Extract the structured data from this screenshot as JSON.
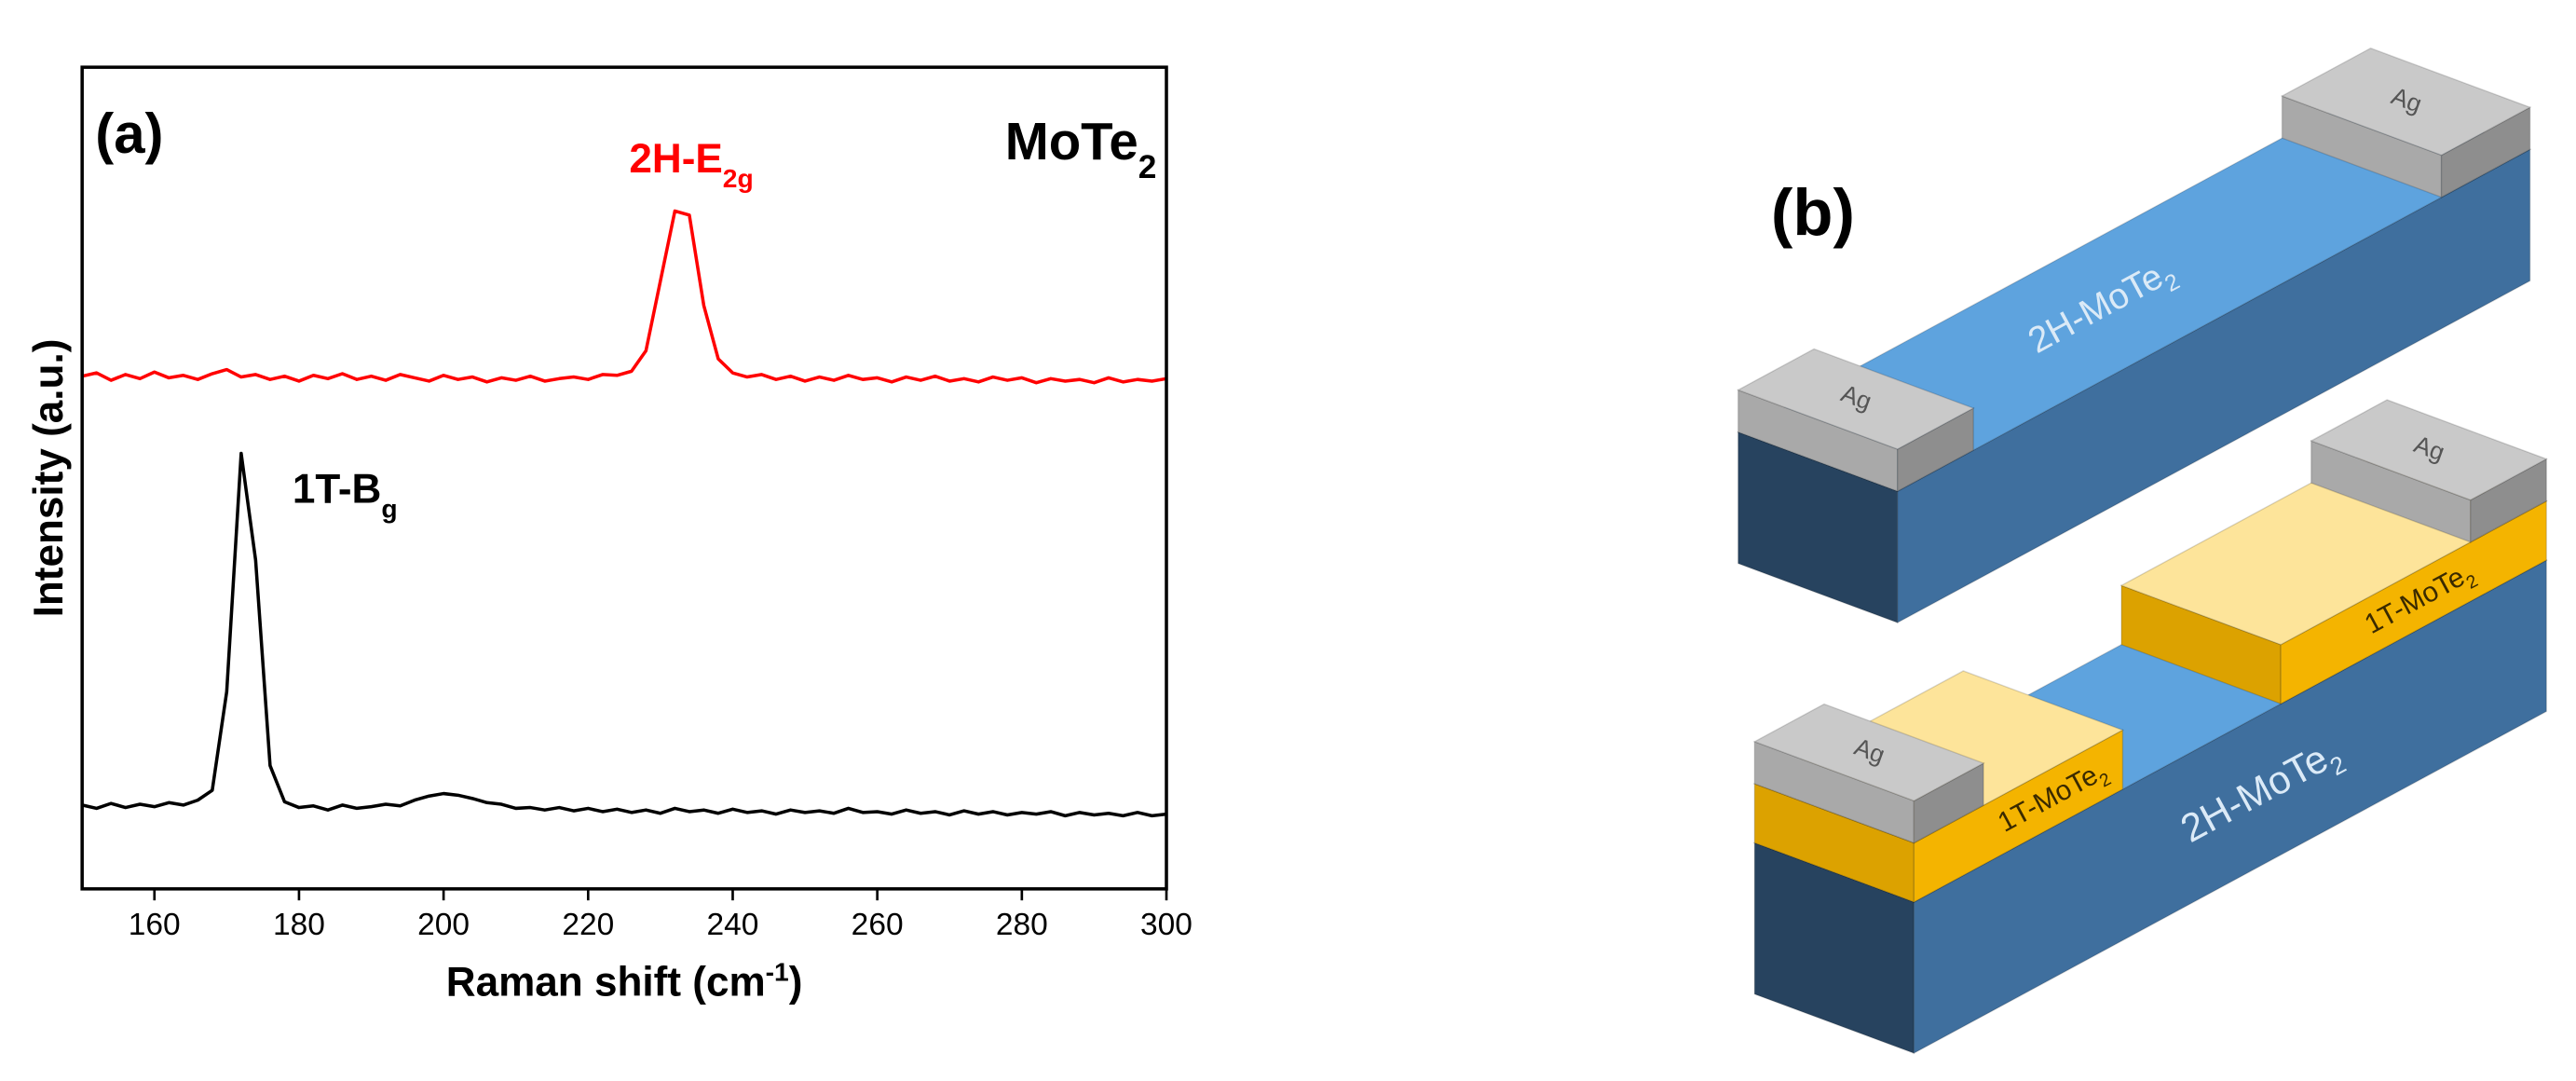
{
  "chart_data": {
    "type": "line",
    "panel_label": "(a)",
    "title": {
      "text": "MoTe",
      "sub": "2"
    },
    "xlabel": {
      "text": "Raman shift (cm",
      "sup": "-1",
      "end": ")"
    },
    "ylabel": "Intensity (a.u.)",
    "xlim": [
      150,
      300
    ],
    "ylim": [
      0,
      100
    ],
    "xticks": [
      160,
      180,
      200,
      220,
      240,
      260,
      280,
      300
    ],
    "x": [
      150,
      152,
      154,
      156,
      158,
      160,
      162,
      164,
      166,
      168,
      170,
      172,
      174,
      176,
      178,
      180,
      182,
      184,
      186,
      188,
      190,
      192,
      194,
      196,
      198,
      200,
      202,
      204,
      206,
      208,
      210,
      212,
      214,
      216,
      218,
      220,
      222,
      224,
      226,
      228,
      230,
      232,
      234,
      236,
      238,
      240,
      242,
      244,
      246,
      248,
      250,
      252,
      254,
      256,
      258,
      260,
      262,
      264,
      266,
      268,
      270,
      272,
      274,
      276,
      278,
      280,
      282,
      284,
      286,
      288,
      290,
      292,
      294,
      296,
      298,
      300
    ],
    "series": [
      {
        "color": "#000000",
        "values": [
          10.2,
          9.8,
          10.4,
          9.9,
          10.3,
          10.0,
          10.5,
          10.2,
          10.8,
          12.0,
          24,
          53,
          40,
          15,
          10.6,
          9.9,
          10.1,
          9.6,
          10.2,
          9.8,
          10.0,
          10.3,
          10.1,
          10.8,
          11.3,
          11.6,
          11.4,
          11.0,
          10.5,
          10.3,
          9.8,
          9.9,
          9.6,
          9.9,
          9.5,
          9.8,
          9.4,
          9.7,
          9.3,
          9.6,
          9.2,
          9.8,
          9.4,
          9.6,
          9.2,
          9.7,
          9.3,
          9.5,
          9.1,
          9.6,
          9.3,
          9.5,
          9.2,
          9.8,
          9.3,
          9.4,
          9.1,
          9.6,
          9.2,
          9.4,
          9.0,
          9.5,
          9.1,
          9.4,
          9.0,
          9.3,
          9.1,
          9.4,
          8.9,
          9.3,
          9.0,
          9.2,
          8.9,
          9.3,
          8.9,
          9.1
        ]
      },
      {
        "color": "#ff0000",
        "values": [
          62.4,
          62.8,
          61.9,
          62.6,
          62.1,
          62.9,
          62.2,
          62.5,
          62.0,
          62.7,
          63.2,
          62.3,
          62.6,
          62.0,
          62.4,
          61.8,
          62.5,
          62.1,
          62.7,
          62.0,
          62.4,
          61.9,
          62.6,
          62.2,
          61.8,
          62.5,
          62.0,
          62.3,
          61.7,
          62.2,
          61.9,
          62.4,
          61.8,
          62.1,
          62.3,
          62.0,
          62.6,
          62.5,
          63.0,
          65.5,
          74,
          82.5,
          82,
          71,
          64.5,
          62.8,
          62.3,
          62.6,
          62.0,
          62.4,
          61.8,
          62.3,
          61.9,
          62.5,
          62.0,
          62.2,
          61.7,
          62.3,
          61.9,
          62.4,
          61.8,
          62.1,
          61.7,
          62.3,
          61.9,
          62.2,
          61.6,
          62.1,
          61.8,
          62.0,
          61.6,
          62.2,
          61.7,
          62.0,
          61.8,
          62.1
        ]
      }
    ],
    "annotations": [
      {
        "text": "2H-E",
        "sub": "2g",
        "color": "#ff0000"
      },
      {
        "text": "1T-B",
        "sub": "g",
        "color": "#000000"
      }
    ]
  },
  "panel_b": {
    "label": "(b)",
    "top_device": {
      "contacts": [
        "Ag",
        "Ag"
      ],
      "channel": {
        "text": "2H-MoTe",
        "sub": "2"
      }
    },
    "bottom_device": {
      "contacts": [
        "Ag",
        "Ag"
      ],
      "phase_regions": [
        {
          "text": "1T-MoTe",
          "sub": "2"
        },
        {
          "text": "1T-MoTe",
          "sub": "2"
        }
      ],
      "channel": {
        "text": "2H-MoTe",
        "sub": "2"
      }
    }
  }
}
